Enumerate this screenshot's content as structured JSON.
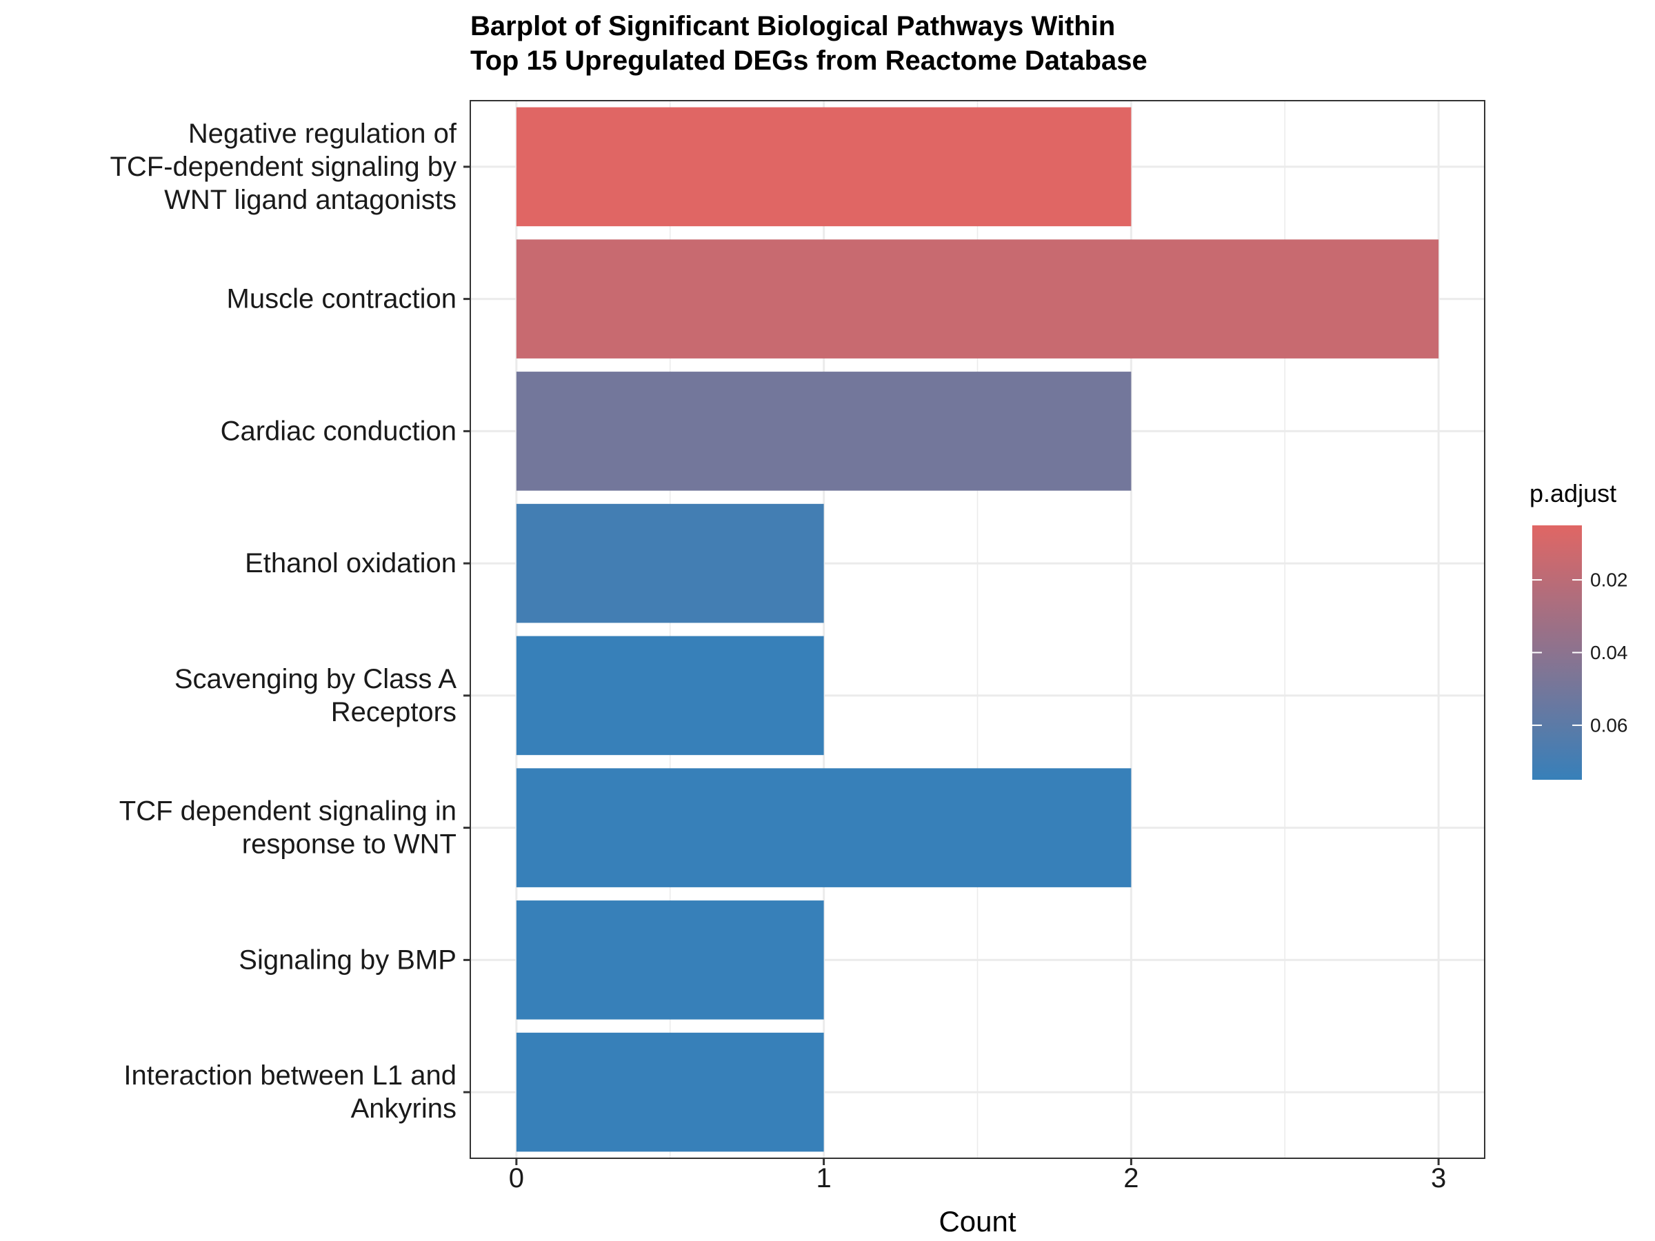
{
  "chart_data": {
    "type": "bar",
    "orientation": "horizontal",
    "title": [
      "Barplot of Significant Biological Pathways Within",
      "Top 15 Upregulated DEGs from Reactome Database"
    ],
    "xlabel": "Count",
    "ylabel": "",
    "xlim": [
      -0.15,
      3.15
    ],
    "x_ticks": [
      0,
      1,
      2,
      3
    ],
    "grid": true,
    "categories": [
      {
        "label": [
          "Negative regulation of",
          "TCF-dependent signaling by",
          "WNT ligand antagonists"
        ],
        "count": 2,
        "p_adjust": 0.005
      },
      {
        "label": [
          "Muscle contraction"
        ],
        "count": 3,
        "p_adjust": 0.015
      },
      {
        "label": [
          "Cardiac conduction"
        ],
        "count": 2,
        "p_adjust": 0.05
      },
      {
        "label": [
          "Ethanol oxidation"
        ],
        "count": 1,
        "p_adjust": 0.07
      },
      {
        "label": [
          "Scavenging by Class A",
          "Receptors"
        ],
        "count": 1,
        "p_adjust": 0.075
      },
      {
        "label": [
          "TCF dependent signaling in",
          "response to WNT"
        ],
        "count": 2,
        "p_adjust": 0.075
      },
      {
        "label": [
          "Signaling by BMP"
        ],
        "count": 1,
        "p_adjust": 0.075
      },
      {
        "label": [
          "Interaction between L1 and",
          "Ankyrins"
        ],
        "count": 1,
        "p_adjust": 0.075
      }
    ],
    "legend": {
      "title": "p.adjust",
      "placement": "right",
      "ticks": [
        0.02,
        0.04,
        0.06
      ],
      "range": [
        0.005,
        0.075
      ],
      "color_low_p": "#e06664",
      "color_high_p": "#3780b9"
    }
  }
}
